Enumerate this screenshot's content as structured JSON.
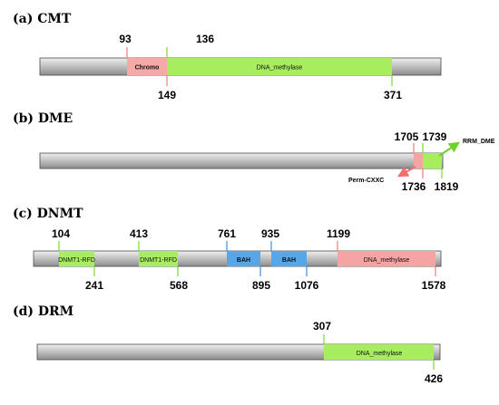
{
  "colors": {
    "backbone_light": "#efefef",
    "backbone_mid": "#c4c4c4",
    "backbone_dark": "#8c8c8c",
    "chromo": "#f6a9a9",
    "green_domain": "#a8ec60",
    "red_domain": "#f6a3a3",
    "bah": "#56a6ea",
    "pink_tick": "#f07a7a",
    "green_tick": "#7fd832",
    "blue_tick": "#3d8ee0",
    "perm_arrow": "#f07070",
    "rrm_arrow": "#6fd02a"
  },
  "panels": [
    {
      "id": "cmt",
      "label": "(a) CMT",
      "domains": [
        {
          "name": "Chromo",
          "color_key": "chromo",
          "bold": true
        },
        {
          "name": "DNA_methylase",
          "color_key": "green_domain",
          "bold": false
        }
      ],
      "numbers": [
        "93",
        "136",
        "149",
        "371"
      ]
    },
    {
      "id": "dme",
      "label": "(b) DME",
      "domains": [
        {
          "name": "",
          "color_key": "red_domain"
        },
        {
          "name": "",
          "color_key": "green_domain"
        }
      ],
      "numbers": [
        "1705",
        "1739",
        "1736",
        "1819"
      ],
      "annotations": [
        "RRM_DME",
        "Perm-CXXC"
      ]
    },
    {
      "id": "dnmt",
      "label": "(c) DNMT",
      "domains": [
        {
          "name": "DNMT1-RFD",
          "color_key": "green_domain"
        },
        {
          "name": "DNMT1-RFD",
          "color_key": "green_domain"
        },
        {
          "name": "BAH",
          "color_key": "bah",
          "bold": true
        },
        {
          "name": "BAH",
          "color_key": "bah",
          "bold": true
        },
        {
          "name": "DNA_methylase",
          "color_key": "red_domain"
        }
      ],
      "numbers": [
        "104",
        "413",
        "761",
        "935",
        "1199",
        "241",
        "568",
        "895",
        "1076",
        "1578"
      ]
    },
    {
      "id": "drm",
      "label": "(d) DRM",
      "domains": [
        {
          "name": "DNA_methylase",
          "color_key": "green_domain"
        }
      ],
      "numbers": [
        "307",
        "426"
      ]
    }
  ]
}
